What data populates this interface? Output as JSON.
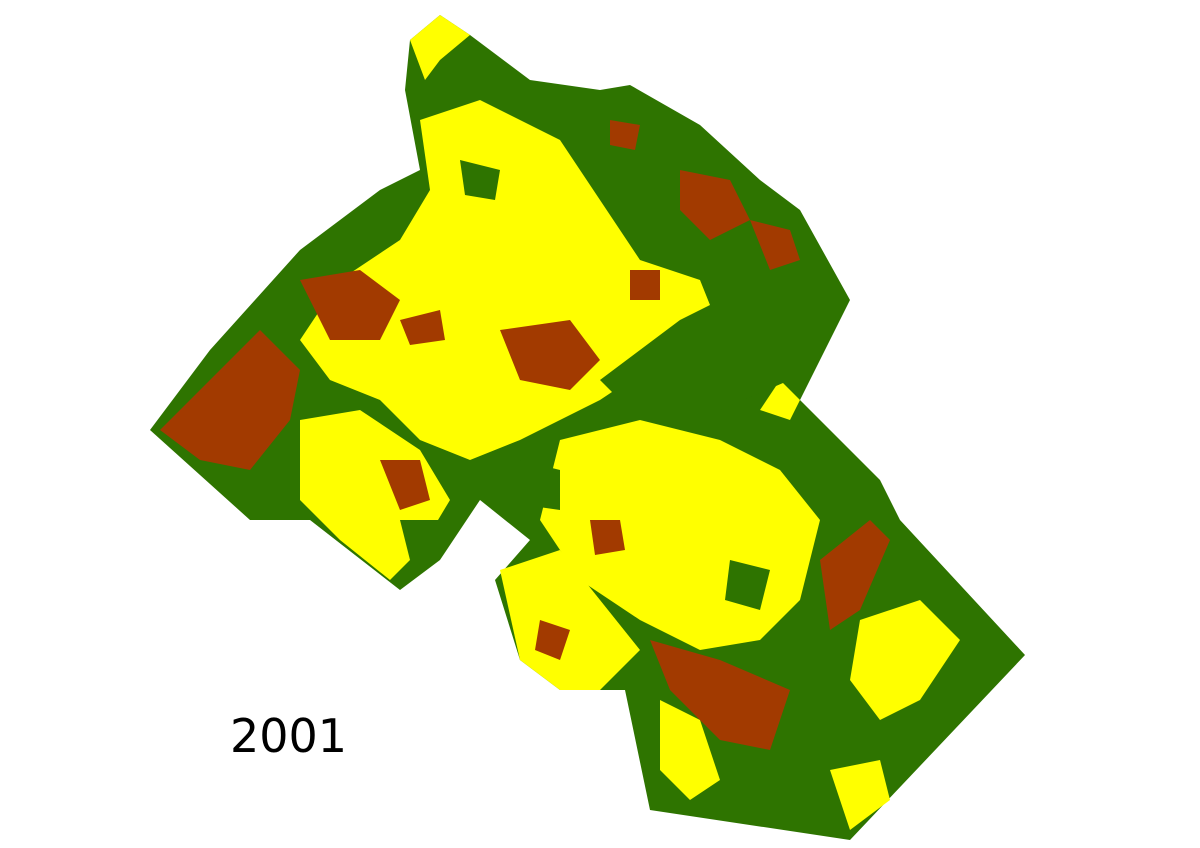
{
  "map": {
    "label": "2001"
  }
}
